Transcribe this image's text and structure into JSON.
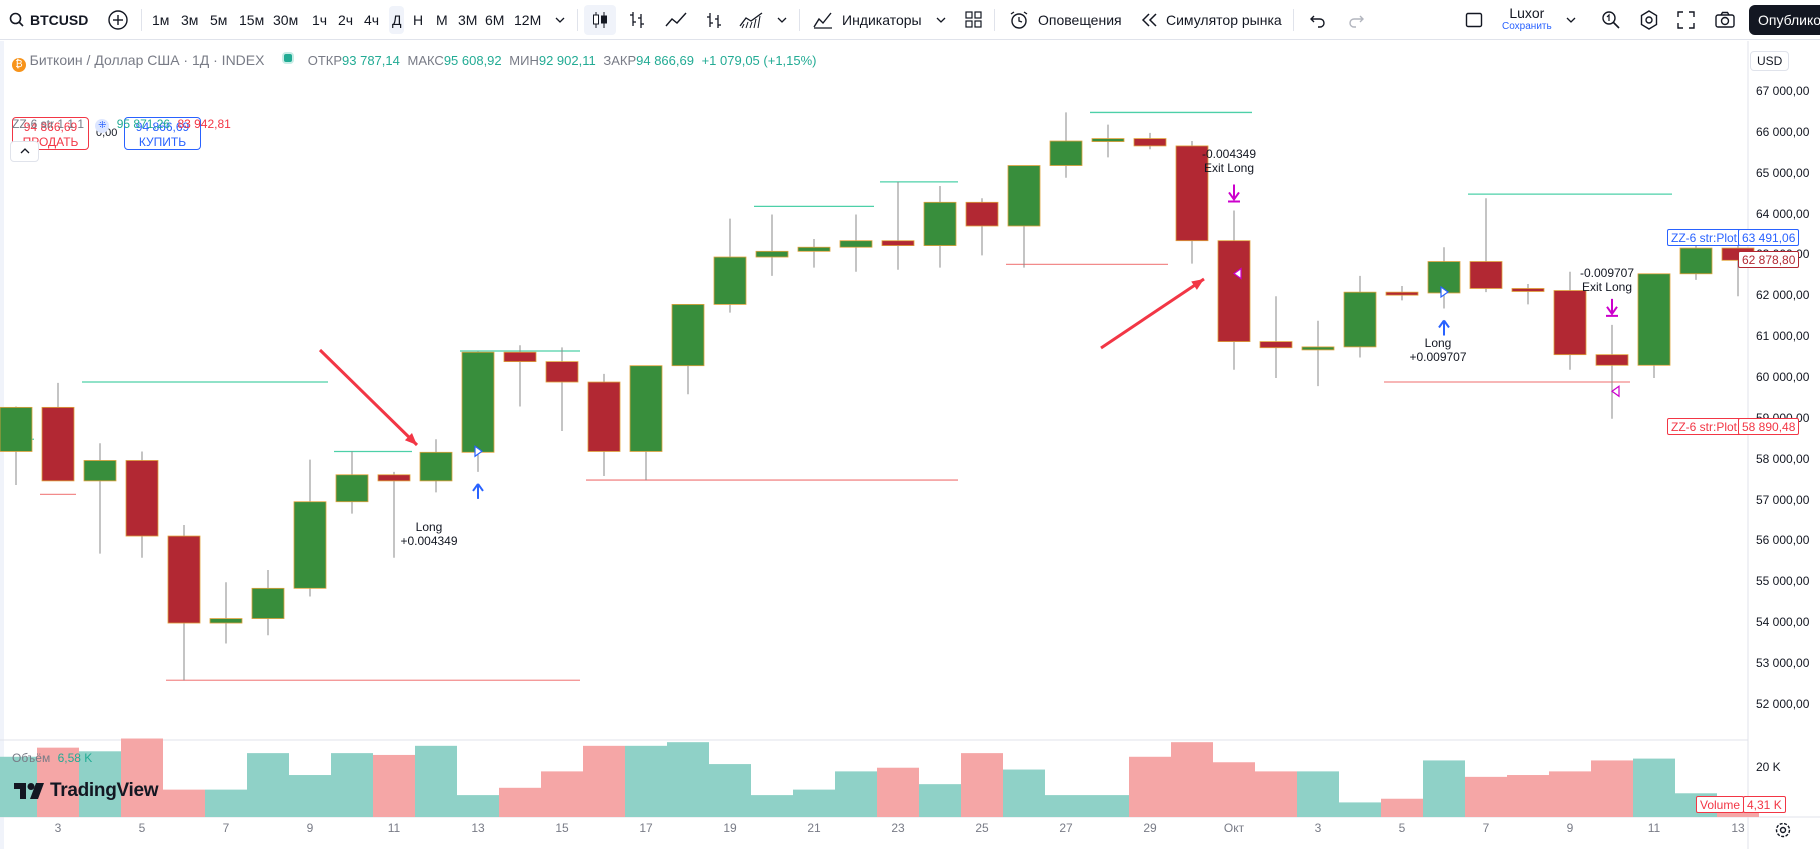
{
  "toolbar": {
    "symbol": "BTCUSD",
    "intervals": [
      "1м",
      "3м",
      "5м",
      "15м",
      "30м",
      "1ч",
      "2ч",
      "4ч",
      "Д",
      "Н",
      "М",
      "3М",
      "6М",
      "12М"
    ],
    "active_interval": "Д",
    "indicators_label": "Индикаторы",
    "alerts_label": "Оповещения",
    "replay_label": "Симулятор рынка",
    "layout_name": "Luxor",
    "layout_save": "Сохранить",
    "publish_label": "Опублико"
  },
  "legend": {
    "title": "Биткоин / Доллар США · 1Д · INDEX",
    "open_label": "ОТКР",
    "open": "93 787,14",
    "high_label": "МАКС",
    "high": "95 608,92",
    "low_label": "МИН",
    "low": "92 902,11",
    "close_label": "ЗАКР",
    "close": "94 866,69",
    "change": "+1 079,05 (+1,15%)",
    "sell_price": "94 866,69",
    "sell_label": "ПРОДАТЬ",
    "spread": "0,00",
    "buy_price": "94 866,69",
    "buy_label": "КУПИТЬ",
    "indicator_name": "ZZ-6 str 1 1 1",
    "indicator_val1": "95 871,26",
    "indicator_val2": "83 942,81",
    "volume_label": "Объём",
    "volume_value": "6,58 K"
  },
  "price_axis": {
    "currency": "USD",
    "labels": [
      "67 000,00",
      "66 000,00",
      "65 000,00",
      "64 000,00",
      "63 000,00",
      "62 000,00",
      "61 000,00",
      "60 000,00",
      "59 000,00",
      "58 000,00",
      "57 000,00",
      "56 000,00",
      "55 000,00",
      "54 000,00",
      "53 000,00",
      "52 000,00"
    ],
    "tag_plot_high_name": "ZZ-6 str:Plot",
    "tag_plot_high_val": "63 491,06",
    "tag_last_val": "62 878,80",
    "tag_plot_low_name": "ZZ-6 str:Plot",
    "tag_plot_low_val": "58 890,48",
    "volume_axis_label": "20 K",
    "volume_tag_name": "Volume",
    "volume_tag_val": "4,31 K"
  },
  "time_axis": {
    "labels": [
      "3",
      "5",
      "7",
      "9",
      "11",
      "13",
      "15",
      "17",
      "19",
      "21",
      "23",
      "25",
      "27",
      "29",
      "Окт",
      "3",
      "5",
      "7",
      "9",
      "11",
      "13"
    ]
  },
  "annotations": {
    "long1": "Long",
    "long1_val": "+0.004349",
    "exit1_val": "-0.004349",
    "exit1": "Exit Long",
    "long2": "Long",
    "long2_val": "+0.009707",
    "exit2_val": "-0.009707",
    "exit2": "Exit Long"
  },
  "brand": "TradingView",
  "colors": {
    "up": "#388e3c",
    "down": "#b22833",
    "up_vol": "#8fd1c7",
    "down_vol": "#f5a6a6",
    "accent": "#2962ff",
    "zz_high": "#4dd0a8",
    "zz_low": "#f28b8b",
    "signal": "#cc00cc"
  },
  "chart_data": {
    "type": "candlestick",
    "x": [
      "2",
      "3",
      "4",
      "5",
      "6",
      "7",
      "8",
      "9",
      "10",
      "11",
      "12",
      "13",
      "14",
      "15",
      "16",
      "17",
      "18",
      "19",
      "20",
      "21",
      "22",
      "23",
      "24",
      "25",
      "26",
      "27",
      "28",
      "29",
      "30",
      "Окт",
      "2",
      "3",
      "4",
      "5",
      "6",
      "7",
      "8",
      "9",
      "10",
      "11",
      "12",
      "13"
    ],
    "ohlc": [
      [
        58200,
        59300,
        57380,
        59280,
        "up"
      ],
      [
        59280,
        59880,
        57500,
        57480,
        "down"
      ],
      [
        57480,
        58400,
        55700,
        57980,
        "up"
      ],
      [
        57980,
        58200,
        55600,
        56130,
        "down"
      ],
      [
        56130,
        56400,
        52600,
        54000,
        "down"
      ],
      [
        54000,
        55000,
        53500,
        54110,
        "up"
      ],
      [
        54110,
        55300,
        53700,
        54850,
        "up"
      ],
      [
        54850,
        58000,
        54650,
        56970,
        "up"
      ],
      [
        56970,
        58200,
        56680,
        57630,
        "up"
      ],
      [
        57630,
        57700,
        55600,
        57480,
        "down"
      ],
      [
        57480,
        58500,
        57200,
        58180,
        "up"
      ],
      [
        58180,
        60650,
        57700,
        60630,
        "up"
      ],
      [
        60630,
        60800,
        59300,
        60400,
        "down"
      ],
      [
        60400,
        60750,
        58700,
        59900,
        "down"
      ],
      [
        59900,
        60100,
        57600,
        58200,
        "down"
      ],
      [
        58200,
        60300,
        57500,
        60300,
        "up"
      ],
      [
        60300,
        61800,
        59600,
        61800,
        "up"
      ],
      [
        61800,
        63900,
        61600,
        62960,
        "up"
      ],
      [
        62960,
        64000,
        62500,
        63100,
        "up"
      ],
      [
        63100,
        63400,
        62700,
        63200,
        "up"
      ],
      [
        63200,
        64000,
        62600,
        63360,
        "up"
      ],
      [
        63360,
        64800,
        62650,
        63240,
        "down"
      ],
      [
        63240,
        64700,
        62700,
        64300,
        "up"
      ],
      [
        64300,
        64400,
        63000,
        63720,
        "down"
      ],
      [
        63720,
        65200,
        62700,
        65200,
        "up"
      ],
      [
        65200,
        66500,
        64900,
        65800,
        "up"
      ],
      [
        65800,
        66200,
        65400,
        65860,
        "up"
      ],
      [
        65860,
        66000,
        65600,
        65680,
        "down"
      ],
      [
        65680,
        65800,
        62800,
        63360,
        "down"
      ],
      [
        63360,
        64100,
        60200,
        60890,
        "down"
      ],
      [
        60890,
        62000,
        60000,
        60740,
        "down"
      ],
      [
        60740,
        61400,
        59800,
        60760,
        "up"
      ],
      [
        60760,
        62500,
        60500,
        62100,
        "up"
      ],
      [
        62100,
        62250,
        61900,
        62080,
        "down"
      ],
      [
        62080,
        63200,
        61700,
        62850,
        "up"
      ],
      [
        62850,
        64400,
        62100,
        62190,
        "down"
      ],
      [
        62190,
        62300,
        61800,
        62140,
        "down"
      ],
      [
        62140,
        62600,
        60200,
        60570,
        "down"
      ],
      [
        60570,
        61300,
        59000,
        60310,
        "down"
      ],
      [
        60310,
        62500,
        60000,
        62550,
        "up"
      ],
      [
        62550,
        63400,
        62400,
        63180,
        "up"
      ],
      [
        63180,
        63500,
        62000,
        62880,
        "down"
      ]
    ],
    "volume": [
      16.5,
      19,
      18,
      21.5,
      7.5,
      7.5,
      17.5,
      11.5,
      17.5,
      17,
      19.5,
      6,
      8,
      12.5,
      19.5,
      19.5,
      20.5,
      14.5,
      6,
      7.5,
      12.5,
      13.5,
      9,
      17.5,
      13,
      6,
      6,
      16.5,
      20.5,
      15,
      12.5,
      12.5,
      4,
      5,
      15.5,
      11,
      11.5,
      12.5,
      15.5,
      16,
      6.5,
      4.31
    ],
    "zz_high_segments": [
      [
        58500,
        "2",
        "2"
      ],
      [
        59900,
        "4",
        "9"
      ],
      [
        58200,
        "10",
        "11"
      ],
      [
        60660,
        "13",
        "15"
      ],
      [
        64200,
        "20",
        "22"
      ],
      [
        64800,
        "23",
        "24"
      ],
      [
        66500,
        "28",
        "Окт"
      ],
      [
        64500,
        "7",
        "11"
      ]
    ],
    "zz_low_segments": [
      [
        57150,
        "3",
        "3"
      ],
      [
        52600,
        "6",
        "15"
      ],
      [
        57500,
        "16",
        "24"
      ],
      [
        62780,
        "26",
        "29"
      ],
      [
        59900,
        "5",
        "10"
      ],
      [
        58890,
        "12",
        "13"
      ]
    ],
    "signals": [
      {
        "type": "Long",
        "value": "+0.004349",
        "x": "12"
      },
      {
        "type": "Exit Long",
        "value": "-0.004349",
        "x": "Окт"
      },
      {
        "type": "Long",
        "value": "+0.009707",
        "x": "6"
      },
      {
        "type": "Exit Long",
        "value": "-0.009707",
        "x": "10"
      }
    ],
    "ylim": [
      51500,
      67300
    ]
  }
}
